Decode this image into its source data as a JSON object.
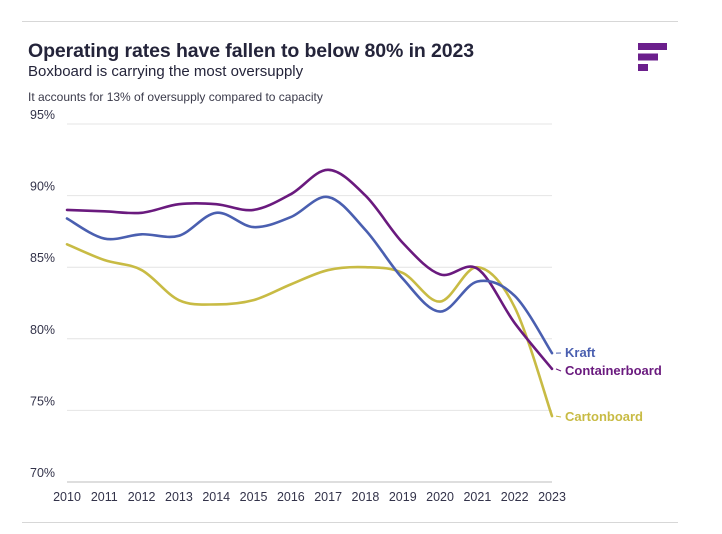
{
  "header": {
    "title": "Operating rates have fallen to below 80% in 2023",
    "subtitle": "Boxboard is carrying the most oversupply",
    "note": "It accounts for 13% of oversupply compared to capacity"
  },
  "logo": {
    "icon": "brand-f-logo-icon",
    "color": "#6b1f8c"
  },
  "chart_data": {
    "type": "line",
    "title": "Operating rates have fallen to below 80% in 2023",
    "subtitle": "Boxboard is carrying the most oversupply",
    "x": [
      2010,
      2011,
      2012,
      2013,
      2014,
      2015,
      2016,
      2017,
      2018,
      2019,
      2020,
      2021,
      2022,
      2023
    ],
    "x_tick_labels": [
      "2010",
      "2011",
      "2012",
      "2013",
      "2014",
      "2015",
      "2016",
      "2017",
      "2018",
      "2019",
      "2020",
      "2021",
      "2022",
      "2023"
    ],
    "ylim": [
      70,
      95
    ],
    "y_ticks": [
      70,
      75,
      80,
      85,
      90,
      95
    ],
    "y_tick_labels": [
      "70%",
      "75%",
      "80%",
      "85%",
      "90%",
      "95%"
    ],
    "grid": true,
    "legend": "end-of-line labels",
    "series": [
      {
        "name": "Kraft",
        "color": "#4a5fb0",
        "values": [
          88.4,
          87.0,
          87.3,
          87.2,
          88.8,
          87.8,
          88.5,
          89.9,
          87.6,
          84.2,
          81.9,
          84.0,
          83.0,
          79.0
        ]
      },
      {
        "name": "Containerboard",
        "color": "#6a1a7e",
        "values": [
          89.0,
          88.9,
          88.8,
          89.4,
          89.4,
          89.0,
          90.1,
          91.8,
          90.0,
          86.7,
          84.5,
          84.9,
          81.1,
          77.9
        ]
      },
      {
        "name": "Cartonboard",
        "color": "#c8bb44",
        "values": [
          86.6,
          85.5,
          84.8,
          82.7,
          82.4,
          82.7,
          83.8,
          84.8,
          85.0,
          84.6,
          82.6,
          85.0,
          82.2,
          74.6
        ]
      }
    ]
  }
}
